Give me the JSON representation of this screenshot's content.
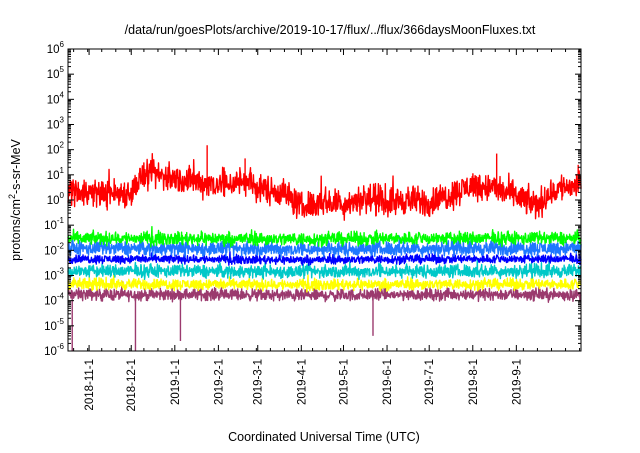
{
  "chart_data": {
    "type": "line",
    "title": "/data/run/goesPlots/archive/2019-10-17/flux/../flux/366daysMoonFluxes.txt",
    "xlabel": "Coordinated Universal Time (UTC)",
    "ylabel": {
      "main": "protons/cm",
      "sup": "2",
      "rest": "-s-sr-MeV"
    },
    "y_scale": "log",
    "ylim": [
      1e-06,
      1000000.0
    ],
    "y_ticks": [
      {
        "base": "10",
        "exp": "-6",
        "value": 1e-06
      },
      {
        "base": "10",
        "exp": "-5",
        "value": 1e-05
      },
      {
        "base": "10",
        "exp": "-4",
        "value": 0.0001
      },
      {
        "base": "10",
        "exp": "-3",
        "value": 0.001
      },
      {
        "base": "10",
        "exp": "-2",
        "value": 0.01
      },
      {
        "base": "10",
        "exp": "-1",
        "value": 0.1
      },
      {
        "base": "10",
        "exp": "0",
        "value": 1
      },
      {
        "base": "10",
        "exp": "1",
        "value": 10
      },
      {
        "base": "10",
        "exp": "2",
        "value": 100
      },
      {
        "base": "10",
        "exp": "3",
        "value": 1000
      },
      {
        "base": "10",
        "exp": "4",
        "value": 10000
      },
      {
        "base": "10",
        "exp": "5",
        "value": 100000
      },
      {
        "base": "10",
        "exp": "6",
        "value": 1000000
      }
    ],
    "xlim": [
      "2018-10-17",
      "2019-10-17"
    ],
    "x_ticks": [
      "2018-11-1",
      "2018-12-1",
      "2019-1-1",
      "2019-2-1",
      "2019-3-1",
      "2019-4-1",
      "2019-5-1",
      "2019-6-1",
      "2019-7-1",
      "2019-8-1",
      "2019-9-1"
    ],
    "grid": false,
    "legend": "none",
    "series": [
      {
        "color": "#9b3a6e",
        "level": 0.00018,
        "spread": 0.16,
        "dips": [
          {
            "date": "2018-10-20",
            "value": 1e-06
          },
          {
            "date": "2018-12-04",
            "value": 1e-06
          },
          {
            "date": "2019-01-05",
            "value": 2.5e-06
          },
          {
            "date": "2019-05-22",
            "value": 4e-06
          }
        ],
        "values": [
          {
            "date": "2018-10-17",
            "value": 0.00018
          },
          {
            "date": "2018-12-01",
            "value": 0.00017
          },
          {
            "date": "2019-02-01",
            "value": 0.00018
          },
          {
            "date": "2019-04-01",
            "value": 0.00016
          },
          {
            "date": "2019-06-01",
            "value": 0.00017
          },
          {
            "date": "2019-08-01",
            "value": 0.00018
          },
          {
            "date": "2019-10-17",
            "value": 0.00017
          }
        ]
      },
      {
        "color": "#ffff00",
        "level": 0.00045,
        "spread": 0.15,
        "values": [
          {
            "date": "2018-10-17",
            "value": 0.00045
          },
          {
            "date": "2019-01-01",
            "value": 0.00045
          },
          {
            "date": "2019-04-01",
            "value": 0.00043
          },
          {
            "date": "2019-07-01",
            "value": 0.00045
          },
          {
            "date": "2019-10-17",
            "value": 0.00045
          }
        ]
      },
      {
        "color": "#00c8c8",
        "level": 0.0015,
        "spread": 0.18,
        "values": [
          {
            "date": "2018-10-17",
            "value": 0.0015
          },
          {
            "date": "2019-01-01",
            "value": 0.0015
          },
          {
            "date": "2019-04-01",
            "value": 0.0014
          },
          {
            "date": "2019-07-01",
            "value": 0.0015
          },
          {
            "date": "2019-10-17",
            "value": 0.0015
          }
        ]
      },
      {
        "color": "#0000ff",
        "level": 0.0045,
        "spread": 0.12,
        "values": [
          {
            "date": "2018-10-17",
            "value": 0.0045
          },
          {
            "date": "2019-01-01",
            "value": 0.0045
          },
          {
            "date": "2019-04-01",
            "value": 0.0042
          },
          {
            "date": "2019-07-01",
            "value": 0.0045
          },
          {
            "date": "2019-10-17",
            "value": 0.0045
          }
        ]
      },
      {
        "color": "#1e78ff",
        "level": 0.012,
        "spread": 0.2,
        "values": [
          {
            "date": "2018-10-17",
            "value": 0.012
          },
          {
            "date": "2019-01-01",
            "value": 0.012
          },
          {
            "date": "2019-04-01",
            "value": 0.011
          },
          {
            "date": "2019-07-01",
            "value": 0.012
          },
          {
            "date": "2019-10-17",
            "value": 0.012
          }
        ]
      },
      {
        "color": "#00ff00",
        "level": 0.03,
        "spread": 0.18,
        "values": [
          {
            "date": "2018-10-17",
            "value": 0.03
          },
          {
            "date": "2019-01-01",
            "value": 0.03
          },
          {
            "date": "2019-04-01",
            "value": 0.028
          },
          {
            "date": "2019-07-01",
            "value": 0.03
          },
          {
            "date": "2019-10-17",
            "value": 0.03
          }
        ]
      },
      {
        "color": "#ff0000",
        "level": 2.0,
        "spread": 0.4,
        "spikes": [
          {
            "date": "2019-01-24",
            "value": 150
          },
          {
            "date": "2019-02-20",
            "value": 45
          },
          {
            "date": "2019-08-18",
            "value": 70
          },
          {
            "date": "2019-10-15",
            "value": 25
          }
        ],
        "values": [
          {
            "date": "2018-10-17",
            "value": 2.5
          },
          {
            "date": "2018-11-01",
            "value": 2.0
          },
          {
            "date": "2018-11-15",
            "value": 1.8
          },
          {
            "date": "2018-12-01",
            "value": 2.0
          },
          {
            "date": "2018-12-08",
            "value": 8.0
          },
          {
            "date": "2018-12-20",
            "value": 10.0
          },
          {
            "date": "2019-01-01",
            "value": 7.0
          },
          {
            "date": "2019-01-20",
            "value": 5.0
          },
          {
            "date": "2019-02-05",
            "value": 4.0
          },
          {
            "date": "2019-02-20",
            "value": 6.0
          },
          {
            "date": "2019-03-01",
            "value": 3.0
          },
          {
            "date": "2019-03-20",
            "value": 2.0
          },
          {
            "date": "2019-04-01",
            "value": 0.5
          },
          {
            "date": "2019-04-15",
            "value": 0.9
          },
          {
            "date": "2019-05-01",
            "value": 0.7
          },
          {
            "date": "2019-05-15",
            "value": 1.2
          },
          {
            "date": "2019-06-01",
            "value": 0.8
          },
          {
            "date": "2019-06-15",
            "value": 1.0
          },
          {
            "date": "2019-07-01",
            "value": 0.8
          },
          {
            "date": "2019-07-15",
            "value": 1.5
          },
          {
            "date": "2019-08-01",
            "value": 4.0
          },
          {
            "date": "2019-08-15",
            "value": 3.0
          },
          {
            "date": "2019-09-01",
            "value": 1.5
          },
          {
            "date": "2019-09-15",
            "value": 0.6
          },
          {
            "date": "2019-10-01",
            "value": 3.0
          },
          {
            "date": "2019-10-17",
            "value": 4.0
          }
        ]
      }
    ]
  }
}
